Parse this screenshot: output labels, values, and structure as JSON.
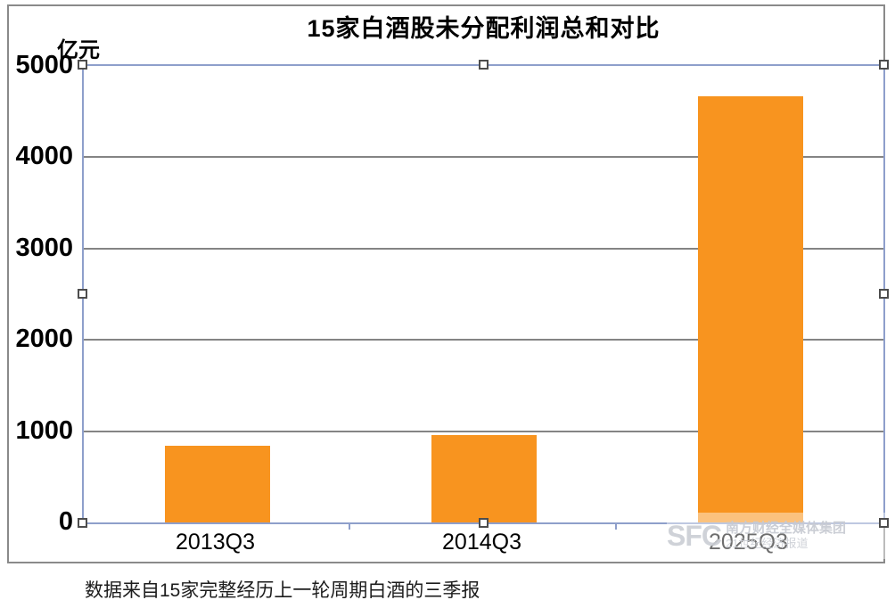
{
  "title": "15家白酒股未分配利润总和对比",
  "unit_label": "亿元",
  "footnote": "数据来自15家完整经历上一轮周期白酒的三季报",
  "watermark": {
    "logo": "SFC",
    "line1": "南方财经全媒体集团",
    "line2": "21世纪经济报道"
  },
  "colors": {
    "bar": "#f8941f",
    "plot_border": "#8e9fcb",
    "gridline": "#848484",
    "chart_border": "#8a8a8a"
  },
  "chart_data": {
    "type": "bar",
    "categories": [
      "2013Q3",
      "2014Q3",
      "2025Q3"
    ],
    "values": [
      840,
      960,
      4670
    ],
    "title": "15家白酒股未分配利润总和对比",
    "xlabel": "",
    "ylabel": "亿元",
    "ylim": [
      0,
      5000
    ],
    "yticks": [
      0,
      1000,
      2000,
      3000,
      4000,
      5000
    ],
    "grid": true,
    "legend": false,
    "bar_color": "#f8941f",
    "selected": true
  }
}
